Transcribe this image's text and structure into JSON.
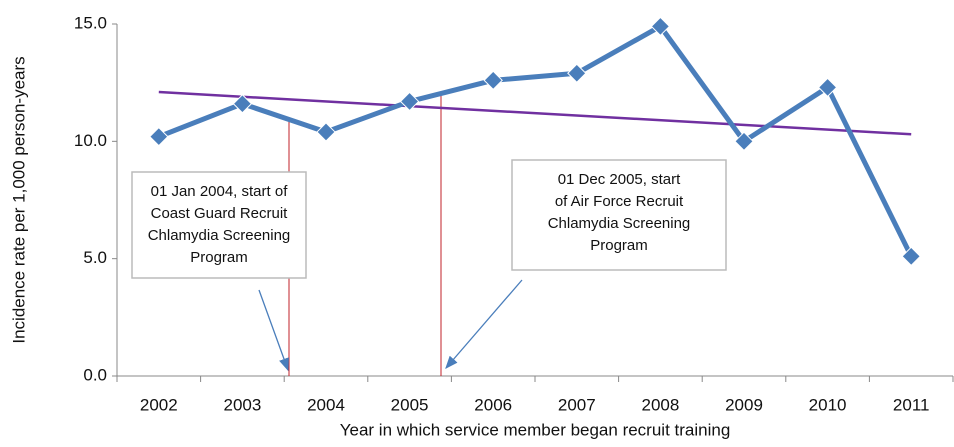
{
  "chart_data": {
    "type": "line",
    "x_label": "Year in which service member began recruit training",
    "y_label": "Incidence rate per 1,000 person-years",
    "categories": [
      "2002",
      "2003",
      "2004",
      "2005",
      "2006",
      "2007",
      "2008",
      "2009",
      "2010",
      "2011"
    ],
    "series": [
      {
        "color": "#4a7ebb",
        "values": [
          10.2,
          11.6,
          10.4,
          11.7,
          12.6,
          12.9,
          14.9,
          10.0,
          12.3,
          5.1
        ]
      }
    ],
    "trendline": {
      "color": "#7030a0",
      "values": [
        12.1,
        10.3
      ]
    },
    "ylim": [
      0,
      15
    ],
    "yticks": [
      {
        "value": 0,
        "label": "0.0"
      },
      {
        "value": 5,
        "label": "5.0"
      },
      {
        "value": 10,
        "label": "10.0"
      },
      {
        "value": 15,
        "label": "15.0"
      }
    ],
    "grid": false,
    "annotations": [
      {
        "lines": [
          "01 Jan 2004, start of",
          "Coast Guard Recruit",
          "Chlamydia Screening",
          "Program"
        ]
      },
      {
        "lines": [
          "01 Dec 2005, start",
          "of Air Force Recruit",
          "Chlamydia Screening",
          "Program"
        ]
      }
    ]
  }
}
